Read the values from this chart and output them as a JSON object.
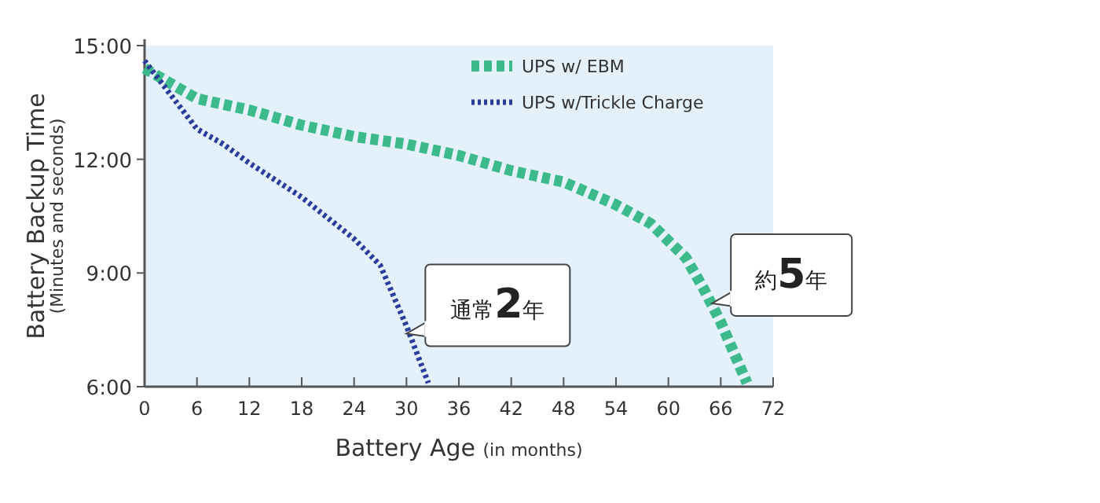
{
  "chart_data": {
    "type": "line",
    "xlabel": "Battery Age (in months)",
    "ylabel": "Battery Backup Time (Minutes and seconds)",
    "xlim": [
      0,
      72
    ],
    "xticks": [
      0,
      6,
      12,
      18,
      24,
      30,
      36,
      42,
      48,
      54,
      60,
      66,
      72
    ],
    "ylim": [
      6,
      15
    ],
    "yticks": [
      {
        "value": 6,
        "label": "6:00"
      },
      {
        "value": 9,
        "label": "9:00"
      },
      {
        "value": 12,
        "label": "12:00"
      },
      {
        "value": 15,
        "label": "15:00"
      }
    ],
    "legend": "top",
    "series": [
      {
        "name": "UPS w/ EBM",
        "color": "#3dba8c",
        "line_style": "dashed",
        "x": [
          0,
          6,
          12,
          18,
          24,
          30,
          36,
          42,
          48,
          54,
          58,
          62,
          64,
          66,
          69
        ],
        "values": [
          14.4,
          13.6,
          13.3,
          12.9,
          12.6,
          12.4,
          12.1,
          11.7,
          11.4,
          10.8,
          10.3,
          9.4,
          8.6,
          7.7,
          6.1
        ]
      },
      {
        "name": "UPS w/Trickle Charge",
        "color": "#2b3d9c",
        "line_style": "dotted",
        "x": [
          0,
          3,
          6,
          9,
          12,
          18,
          24,
          27,
          30,
          32.5
        ],
        "values": [
          14.6,
          13.7,
          12.8,
          12.4,
          11.9,
          11.0,
          9.9,
          9.2,
          7.6,
          6.1
        ]
      }
    ],
    "annotations": [
      {
        "text": "通常**2**年",
        "x": 30,
        "y": 7.4
      },
      {
        "text": "約**5**年",
        "x": 65,
        "y": 8.2
      }
    ]
  }
}
